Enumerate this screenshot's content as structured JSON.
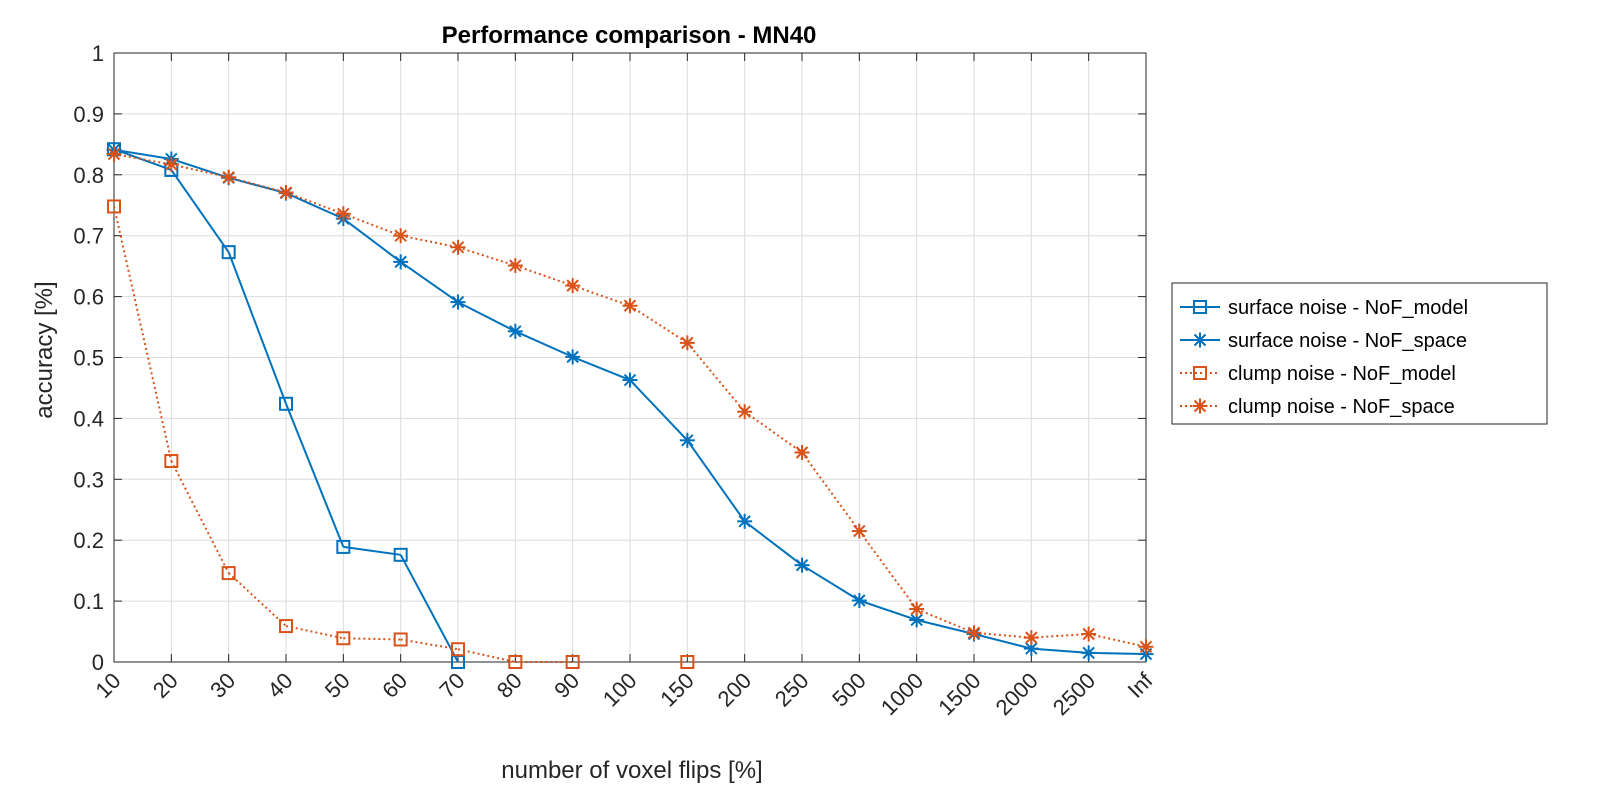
{
  "chart_data": {
    "type": "line",
    "title": "Performance comparison - MN40",
    "xlabel": "number of voxel flips [%]",
    "ylabel": "accuracy [%]",
    "categories": [
      "10",
      "20",
      "30",
      "40",
      "50",
      "60",
      "70",
      "80",
      "90",
      "100",
      "150",
      "200",
      "250",
      "500",
      "1000",
      "1500",
      "2000",
      "2500",
      "Inf"
    ],
    "ylim": [
      0,
      1
    ],
    "yticks": [
      "0",
      "0.1",
      "0.2",
      "0.3",
      "0.4",
      "0.5",
      "0.6",
      "0.7",
      "0.8",
      "0.9",
      "1"
    ],
    "grid": true,
    "legend_position": "outside-right",
    "series": [
      {
        "name": "surface noise - NoF_model",
        "color": "#0072BD",
        "line_style": "solid",
        "marker": "square",
        "values": [
          0.842,
          0.808,
          0.673,
          0.424,
          0.189,
          0.176,
          0.0,
          null,
          null,
          null,
          null,
          null,
          null,
          null,
          null,
          null,
          null,
          null,
          null
        ]
      },
      {
        "name": "surface noise - NoF_space",
        "color": "#0072BD",
        "line_style": "solid",
        "marker": "asterisk",
        "values": [
          0.841,
          0.826,
          0.795,
          0.77,
          0.728,
          0.657,
          0.591,
          0.543,
          0.501,
          0.463,
          0.364,
          0.231,
          0.159,
          0.101,
          0.069,
          0.046,
          0.022,
          0.015,
          0.013
        ]
      },
      {
        "name": "clump noise - NoF_model",
        "color": "#D95319",
        "line_style": "dotted",
        "marker": "square",
        "values": [
          0.748,
          0.33,
          0.146,
          0.059,
          0.039,
          0.037,
          0.021,
          0.0,
          0.0,
          null,
          0.0,
          null,
          null,
          null,
          null,
          null,
          null,
          null,
          null
        ]
      },
      {
        "name": "clump noise - NoF_space",
        "color": "#D95319",
        "line_style": "dotted",
        "marker": "asterisk",
        "values": [
          0.834,
          0.817,
          0.796,
          0.771,
          0.736,
          0.7,
          0.681,
          0.651,
          0.618,
          0.585,
          0.524,
          0.411,
          0.344,
          0.215,
          0.087,
          0.048,
          0.04,
          0.046,
          0.025
        ]
      }
    ]
  }
}
